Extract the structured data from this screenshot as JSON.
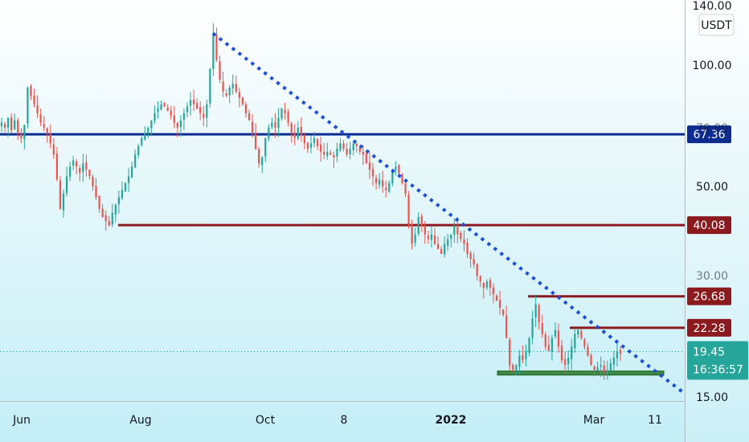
{
  "chart_data": {
    "type": "candlestick",
    "quote_currency": "USDT",
    "y_scale": "log",
    "price_axis_ticks": [
      "140.00",
      "100.00",
      "50.00",
      "15.00"
    ],
    "partially_hidden_ticks": [
      "70.00",
      "30.00"
    ],
    "time_axis_labels": [
      "Jun",
      "Aug",
      "Oct",
      "8",
      "2022",
      "Mar",
      "11"
    ],
    "last_price": {
      "value": "19.45",
      "countdown": "16:36:57",
      "color": "#26a69a"
    },
    "horizontal_levels": [
      {
        "value": "67.36",
        "color": "#0d2c8f"
      },
      {
        "value": "40.08",
        "color": "#8b1a1f"
      },
      {
        "value": "26.68",
        "color": "#8b1a1f"
      },
      {
        "value": "22.28",
        "color": "#8b1a1f"
      }
    ],
    "support_zone": {
      "color": "#2e7d32"
    },
    "trendline": {
      "type": "dotted-downtrend",
      "color": "#1e4fd6"
    },
    "candle_colors": {
      "up": "#26a69a",
      "down": "#ef5350"
    },
    "series_close": [
      72,
      70,
      74,
      69,
      73,
      68,
      66,
      71,
      88,
      84,
      80,
      76,
      72,
      70,
      68,
      64,
      60,
      52,
      44,
      48,
      53,
      56,
      58,
      56,
      54,
      57,
      55,
      53,
      50,
      47,
      44,
      42,
      41,
      40,
      43,
      45,
      47,
      49,
      51,
      53,
      56,
      60,
      63,
      66,
      68,
      70,
      73,
      76,
      78,
      80,
      79,
      77,
      75,
      72,
      70,
      73,
      76,
      79,
      82,
      80,
      78,
      76,
      74,
      80,
      98,
      120,
      103,
      92,
      86,
      84,
      88,
      90,
      86,
      83,
      80,
      76,
      73,
      68,
      62,
      57,
      59,
      66,
      70,
      72,
      70,
      74,
      78,
      76,
      72,
      68,
      66,
      70,
      67,
      64,
      62,
      64,
      66,
      63,
      61,
      60,
      61,
      60,
      59,
      62,
      64,
      62,
      60,
      62,
      64,
      63,
      61,
      60,
      57,
      55,
      53,
      51,
      52,
      50,
      49,
      51,
      55,
      56,
      54,
      51,
      48,
      40,
      36,
      38,
      42,
      40,
      38,
      37,
      38,
      36,
      35,
      34,
      36,
      37,
      38,
      40,
      38,
      37,
      36,
      34,
      33,
      32,
      30,
      29,
      28,
      29,
      28,
      27,
      26,
      25,
      24,
      21,
      18,
      17.5,
      18,
      19,
      18.5,
      19.5,
      21,
      23.5,
      25.5,
      23,
      21.5,
      20,
      19.5,
      21,
      22,
      20,
      18.5,
      18,
      18.8,
      20,
      21.5,
      22,
      21,
      20,
      19,
      18,
      17.5,
      17.8,
      18,
      17.2,
      17.5,
      18.2,
      18.8,
      19.5,
      19.2
    ]
  }
}
